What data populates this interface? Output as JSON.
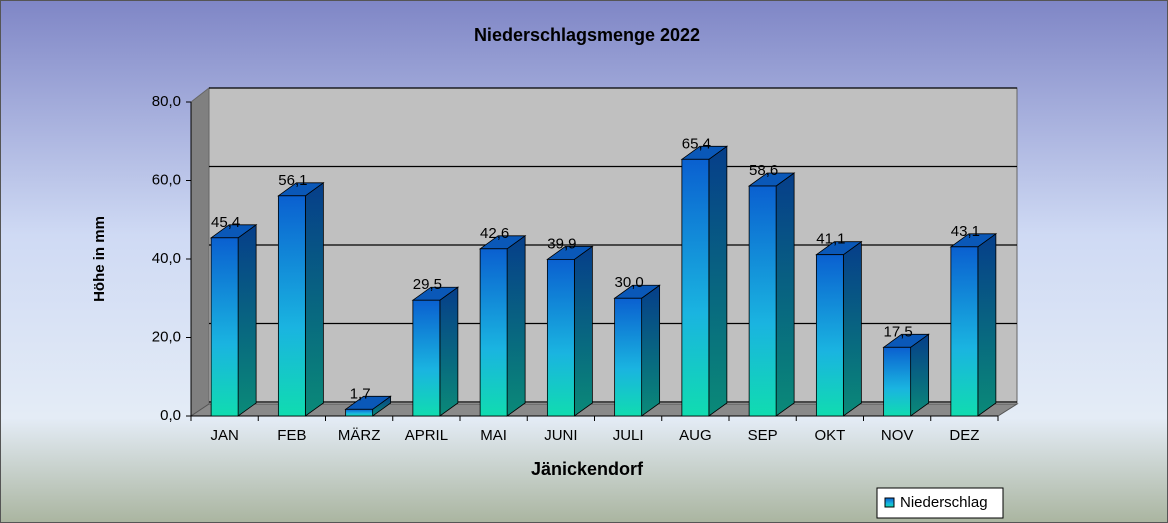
{
  "chart_data": {
    "type": "bar3d",
    "title": "Niederschlagsmenge  2022",
    "categories": [
      "JAN",
      "FEB",
      "MÄRZ",
      "APRIL",
      "MAI",
      "JUNI",
      "JULI",
      "AUG",
      "SEP",
      "OKT",
      "NOV",
      "DEZ"
    ],
    "series": [
      {
        "name": "Niederschlag",
        "color": "#0a6fd0",
        "values": [
          45.4,
          56.1,
          1.7,
          29.5,
          42.6,
          39.9,
          30.0,
          65.4,
          58.6,
          41.1,
          17.5,
          43.1
        ],
        "value_labels": [
          "45,4",
          "56,1",
          "1,7",
          "29,5",
          "42,6",
          "39,9",
          "30,0",
          "65,4",
          "58,6",
          "41,1",
          "17,5",
          "43,1"
        ]
      }
    ],
    "xlabel": "Jänickendorf",
    "ylabel": "Höhe in mm",
    "ylim": [
      0,
      80
    ],
    "yticks": [
      {
        "value": 0,
        "label": "0,0"
      },
      {
        "value": 20,
        "label": "20,0"
      },
      {
        "value": 40,
        "label": "40,0"
      },
      {
        "value": 60,
        "label": "60,0"
      },
      {
        "value": 80,
        "label": "80,0"
      }
    ],
    "grid": true,
    "legend": "bottom-right"
  }
}
